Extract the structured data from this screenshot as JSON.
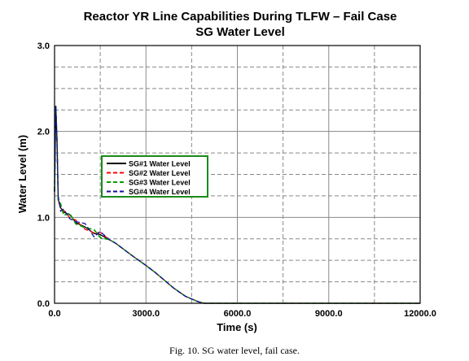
{
  "caption": "Fig. 10.  SG water level, fail case.",
  "chart_data": {
    "type": "line",
    "title": "Reactor YR Line Capabilities During TLFW – Fail Case",
    "subtitle": "SG Water Level",
    "xlabel": "Time (s)",
    "ylabel": "Water Level (m)",
    "xlim": [
      0,
      12000
    ],
    "ylim": [
      0,
      3
    ],
    "x_ticks": [
      "0.0",
      "3000.0",
      "6000.0",
      "9000.0",
      "12000.0"
    ],
    "y_ticks": [
      "0.0",
      "1.0",
      "2.0",
      "3.0"
    ],
    "grid": true,
    "legend_position": "left-middle",
    "series": [
      {
        "name": "SG#1 Water Level",
        "color": "#000000",
        "dash": "solid"
      },
      {
        "name": "SG#2 Water Level",
        "color": "#ff0000",
        "dash": "dashed"
      },
      {
        "name": "SG#3 Water Level",
        "color": "#00a000",
        "dash": "dashed"
      },
      {
        "name": "SG#4 Water Level",
        "color": "#1010a0",
        "dash": "dashed"
      }
    ],
    "x": [
      0,
      40,
      80,
      120,
      200,
      300,
      500,
      700,
      1000,
      1300,
      1500,
      1800,
      2000,
      2300,
      2600,
      3000,
      3300,
      3600,
      3900,
      4100,
      4300,
      4500,
      4700,
      4900,
      5200,
      6000,
      9000,
      12000
    ],
    "values": [
      1.3,
      2.3,
      1.9,
      1.2,
      1.12,
      1.06,
      1.02,
      0.95,
      0.88,
      0.82,
      0.8,
      0.74,
      0.7,
      0.62,
      0.54,
      0.44,
      0.36,
      0.27,
      0.18,
      0.13,
      0.08,
      0.05,
      0.02,
      0.0,
      0.0,
      0.0,
      0.0,
      0.0
    ]
  }
}
